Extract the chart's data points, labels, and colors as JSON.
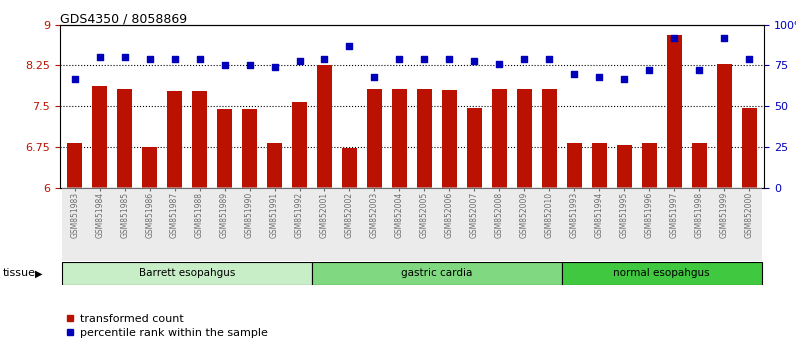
{
  "title": "GDS4350 / 8058869",
  "samples": [
    "GSM851983",
    "GSM851984",
    "GSM851985",
    "GSM851986",
    "GSM851987",
    "GSM851988",
    "GSM851989",
    "GSM851990",
    "GSM851991",
    "GSM851992",
    "GSM852001",
    "GSM852002",
    "GSM852003",
    "GSM852004",
    "GSM852005",
    "GSM852006",
    "GSM852007",
    "GSM852008",
    "GSM852009",
    "GSM852010",
    "GSM851993",
    "GSM851994",
    "GSM851995",
    "GSM851996",
    "GSM851997",
    "GSM851998",
    "GSM851999",
    "GSM852000"
  ],
  "bar_values": [
    6.82,
    7.88,
    7.82,
    6.75,
    7.78,
    7.78,
    7.44,
    7.44,
    6.82,
    7.58,
    8.25,
    6.73,
    7.82,
    7.82,
    7.82,
    7.8,
    7.47,
    7.82,
    7.82,
    7.82,
    6.82,
    6.82,
    6.78,
    6.82,
    8.82,
    6.82,
    8.28,
    7.47
  ],
  "dot_values": [
    67,
    80,
    80,
    79,
    79,
    79,
    75,
    75,
    74,
    78,
    79,
    87,
    68,
    79,
    79,
    79,
    78,
    76,
    79,
    79,
    70,
    68,
    67,
    72,
    92,
    72,
    92,
    79
  ],
  "groups": [
    {
      "label": "Barrett esopahgus",
      "start": 0,
      "end": 9,
      "color": "#c8eec8"
    },
    {
      "label": "gastric cardia",
      "start": 10,
      "end": 19,
      "color": "#80d880"
    },
    {
      "label": "normal esopahgus",
      "start": 20,
      "end": 27,
      "color": "#40c840"
    }
  ],
  "bar_color": "#bb1100",
  "dot_color": "#0000bb",
  "ylim_left": [
    6,
    9
  ],
  "ylim_right": [
    0,
    100
  ],
  "yticks_left": [
    6,
    6.75,
    7.5,
    8.25,
    9
  ],
  "ytick_labels_left": [
    "6",
    "6.75",
    "7.5",
    "8.25",
    "9"
  ],
  "yticks_right": [
    0,
    25,
    50,
    75,
    100
  ],
  "ytick_labels_right": [
    "0",
    "25",
    "50",
    "75",
    "100%"
  ],
  "hlines": [
    6.75,
    7.5,
    8.25
  ],
  "tissue_label": "tissue",
  "legend_bar": "transformed count",
  "legend_dot": "percentile rank within the sample"
}
